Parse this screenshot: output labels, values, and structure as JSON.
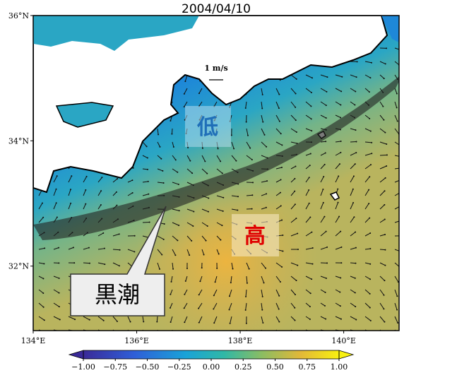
{
  "title": "2004/04/10",
  "map": {
    "lon_range": [
      134,
      141.07
    ],
    "lat_range": [
      30.97,
      36
    ],
    "lat_ticks": [
      {
        "value": 36,
        "label": "36°N"
      },
      {
        "value": 34,
        "label": "34°N"
      },
      {
        "value": 32,
        "label": "32°N"
      }
    ],
    "lon_ticks": [
      {
        "value": 134,
        "label": "134°E"
      },
      {
        "value": 136,
        "label": "136°E"
      },
      {
        "value": 138,
        "label": "138°E"
      },
      {
        "value": 140,
        "label": "140°E"
      }
    ]
  },
  "scale_arrow": "1 m/s",
  "colorbar": {
    "range": [
      -1,
      1
    ],
    "ticks": [
      {
        "value": -1,
        "label": "−1.00"
      },
      {
        "value": -0.75,
        "label": "−0.75"
      },
      {
        "value": -0.5,
        "label": "−0.50"
      },
      {
        "value": -0.25,
        "label": "−0.25"
      },
      {
        "value": 0,
        "label": "0.00"
      },
      {
        "value": 0.25,
        "label": "0.25"
      },
      {
        "value": 0.5,
        "label": "0.50"
      },
      {
        "value": 0.75,
        "label": "0.75"
      },
      {
        "value": 1,
        "label": "1.00"
      }
    ]
  },
  "annotations": {
    "low": "低",
    "high": "高",
    "kuroshio": "黒潮"
  }
}
